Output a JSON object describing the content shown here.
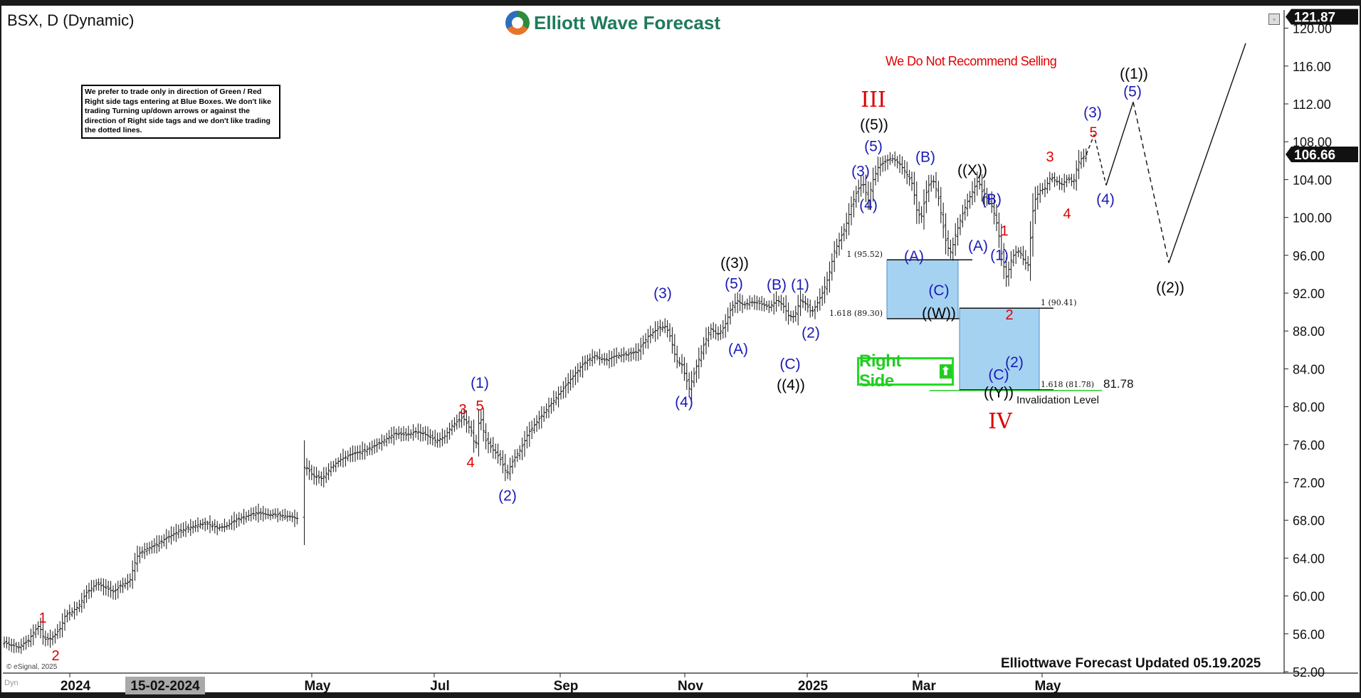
{
  "header": {
    "symbol_label": "BSX, D (Dynamic)",
    "logo_text": "Elliott Wave Forecast",
    "logo_icon": "ewf-logo-icon",
    "maximize_icon": "maximize-icon"
  },
  "notes": {
    "rules_box": "We prefer to trade only in direction of Green / Red Right side tags entering at Blue Boxes. We don't like trading Turning up/down arrows or against the direction of Right side tags and we don't like trading the dotted lines.",
    "no_selling": "We Do Not Recommend Selling",
    "right_side_label": "Right Side",
    "right_side_icon": "up-arrow-icon",
    "invalidation_label": "Invalidation Level",
    "footer_title": "Elliottwave Forecast Updated 05.19.2025",
    "copyright": "© eSignal, 2025",
    "dyn_tag": "Dyn"
  },
  "colors": {
    "wave_blue": "#1a1ab8",
    "wave_red": "#dd0000",
    "wave_black": "#000000",
    "box_fill": "#a6d2f2",
    "right_side_green": "#22cc22",
    "price_tag_bg": "#111111"
  },
  "chart_data": {
    "type": "bar",
    "subtype": "ohlc-daily",
    "ylim": [
      52,
      122
    ],
    "y_ticks": [
      "52.00",
      "56.00",
      "60.00",
      "64.00",
      "68.00",
      "72.00",
      "76.00",
      "80.00",
      "84.00",
      "88.00",
      "92.00",
      "96.00",
      "100.00",
      "104.00",
      "108.00",
      "112.00",
      "116.00",
      "120.00"
    ],
    "x_ticks": [
      "2024",
      "May",
      "Jul",
      "Sep",
      "Nov",
      "2025",
      "Mar",
      "May"
    ],
    "x_selected_label": "15-02-2024",
    "last_price": "106.66",
    "top_price": "121.87",
    "grid": false,
    "price_path": [
      [
        0,
        55.2
      ],
      [
        12,
        54.9
      ],
      [
        26,
        54.6
      ],
      [
        40,
        55.3
      ],
      [
        48,
        56.3
      ],
      [
        55,
        56.9
      ],
      [
        62,
        55.4
      ],
      [
        72,
        55.5
      ],
      [
        84,
        56.5
      ],
      [
        92,
        58.0
      ],
      [
        100,
        58.3
      ],
      [
        110,
        58.9
      ],
      [
        122,
        60.4
      ],
      [
        136,
        61.3
      ],
      [
        150,
        60.8
      ],
      [
        160,
        60.4
      ],
      [
        170,
        61.2
      ],
      [
        182,
        61.5
      ],
      [
        188,
        63.2
      ],
      [
        194,
        64.4
      ],
      [
        205,
        65.0
      ],
      [
        220,
        65.4
      ],
      [
        235,
        66.2
      ],
      [
        250,
        66.8
      ],
      [
        265,
        67.2
      ],
      [
        280,
        67.6
      ],
      [
        292,
        67.6
      ],
      [
        305,
        67.2
      ],
      [
        318,
        67.4
      ],
      [
        330,
        68.0
      ],
      [
        345,
        68.4
      ],
      [
        360,
        68.8
      ],
      [
        375,
        68.6
      ],
      [
        390,
        68.6
      ],
      [
        405,
        68.4
      ],
      [
        418,
        68.2
      ],
      [
        428,
        73.8
      ],
      [
        440,
        72.7
      ],
      [
        452,
        72.4
      ],
      [
        465,
        73.6
      ],
      [
        480,
        74.5
      ],
      [
        495,
        75.0
      ],
      [
        510,
        75.3
      ],
      [
        525,
        75.8
      ],
      [
        540,
        76.5
      ],
      [
        555,
        77.2
      ],
      [
        570,
        77.0
      ],
      [
        585,
        77.4
      ],
      [
        600,
        77.0
      ],
      [
        612,
        76.4
      ],
      [
        624,
        76.8
      ],
      [
        635,
        78.0
      ],
      [
        650,
        78.9
      ],
      [
        662,
        77.5
      ],
      [
        668,
        75.6
      ],
      [
        674,
        79.2
      ],
      [
        682,
        76.5
      ],
      [
        692,
        75.5
      ],
      [
        702,
        74.6
      ],
      [
        712,
        72.9
      ],
      [
        722,
        74.5
      ],
      [
        732,
        75.6
      ],
      [
        742,
        77.2
      ],
      [
        758,
        78.8
      ],
      [
        775,
        80.4
      ],
      [
        790,
        81.8
      ],
      [
        805,
        83.2
      ],
      [
        820,
        84.6
      ],
      [
        835,
        85.4
      ],
      [
        850,
        84.9
      ],
      [
        865,
        85.4
      ],
      [
        880,
        85.5
      ],
      [
        895,
        85.8
      ],
      [
        910,
        87.4
      ],
      [
        925,
        88.3
      ],
      [
        935,
        88.5
      ],
      [
        942,
        87.3
      ],
      [
        950,
        84.9
      ],
      [
        958,
        84.4
      ],
      [
        968,
        81.9
      ],
      [
        976,
        83.7
      ],
      [
        988,
        86.4
      ],
      [
        998,
        88.3
      ],
      [
        1008,
        87.6
      ],
      [
        1018,
        88.5
      ],
      [
        1028,
        90.6
      ],
      [
        1036,
        91.2
      ],
      [
        1045,
        90.7
      ],
      [
        1055,
        91.1
      ],
      [
        1068,
        90.9
      ],
      [
        1080,
        90.5
      ],
      [
        1092,
        91.3
      ],
      [
        1100,
        90.7
      ],
      [
        1108,
        89.6
      ],
      [
        1116,
        89.5
      ],
      [
        1124,
        91.3
      ],
      [
        1132,
        90.9
      ],
      [
        1140,
        89.9
      ],
      [
        1148,
        90.9
      ],
      [
        1156,
        92.1
      ],
      [
        1164,
        93.8
      ],
      [
        1172,
        96.4
      ],
      [
        1180,
        97.7
      ],
      [
        1188,
        99.1
      ],
      [
        1196,
        101.2
      ],
      [
        1204,
        102.8
      ],
      [
        1212,
        103.7
      ],
      [
        1220,
        101.8
      ],
      [
        1226,
        103.9
      ],
      [
        1234,
        105.4
      ],
      [
        1242,
        105.8
      ],
      [
        1252,
        106.3
      ],
      [
        1262,
        105.8
      ],
      [
        1272,
        104.8
      ],
      [
        1282,
        103.5
      ],
      [
        1288,
        100.7
      ],
      [
        1294,
        99.9
      ],
      [
        1300,
        102.3
      ],
      [
        1306,
        103.7
      ],
      [
        1312,
        103.8
      ],
      [
        1318,
        102.2
      ],
      [
        1324,
        99.5
      ],
      [
        1330,
        97.0
      ],
      [
        1336,
        96.3
      ],
      [
        1342,
        98.1
      ],
      [
        1350,
        99.9
      ],
      [
        1358,
        101.5
      ],
      [
        1366,
        102.7
      ],
      [
        1374,
        104.0
      ],
      [
        1382,
        102.2
      ],
      [
        1390,
        101.9
      ],
      [
        1396,
        100.6
      ],
      [
        1402,
        98.8
      ],
      [
        1408,
        95.5
      ],
      [
        1414,
        93.6
      ],
      [
        1420,
        95.4
      ],
      [
        1426,
        96.3
      ],
      [
        1432,
        96.5
      ],
      [
        1438,
        95.5
      ],
      [
        1444,
        94.8
      ],
      [
        1452,
        101.5
      ],
      [
        1460,
        102.8
      ],
      [
        1468,
        103.1
      ],
      [
        1476,
        104.3
      ],
      [
        1484,
        103.8
      ],
      [
        1492,
        103.5
      ],
      [
        1500,
        104.1
      ],
      [
        1508,
        103.7
      ],
      [
        1514,
        105.7
      ],
      [
        1520,
        106.3
      ],
      [
        1526,
        106.66
      ]
    ],
    "projection": [
      {
        "points": [
          [
            1526,
            106.66
          ],
          [
            1537,
            108.7
          ],
          [
            1554,
            103.4
          ]
        ],
        "style": "dotted"
      },
      {
        "points": [
          [
            1554,
            103.4
          ],
          [
            1592,
            112.2
          ]
        ],
        "style": "solid"
      },
      {
        "points": [
          [
            1592,
            112.2
          ],
          [
            1642,
            95.2
          ]
        ],
        "style": "dashed"
      },
      {
        "points": [
          [
            1642,
            95.2
          ],
          [
            1750,
            118.4
          ]
        ],
        "style": "solid"
      }
    ],
    "blue_boxes": [
      {
        "x0": 1246,
        "x1": 1346,
        "y_top": 95.52,
        "y_bottom": 89.3,
        "label_top": "1 (95.52)",
        "label_bottom": "1.618 (89.30)"
      },
      {
        "x0": 1348,
        "x1": 1460,
        "y_top": 90.41,
        "y_bottom": 81.78,
        "label_top": "1 (90.41)",
        "label_bottom": "1.618 (81.78)"
      }
    ],
    "invalidation": {
      "value": 81.78,
      "value_label": "81.78"
    },
    "wave_labels": [
      {
        "text": "1",
        "x": 60,
        "y": 57.6,
        "color": "red"
      },
      {
        "text": "2",
        "x": 78,
        "y": 53.6,
        "color": "red"
      },
      {
        "text": "3",
        "x": 650,
        "y": 79.6,
        "color": "red"
      },
      {
        "text": "5",
        "x": 674,
        "y": 80.0,
        "color": "red"
      },
      {
        "text": "4",
        "x": 661,
        "y": 74.0,
        "color": "red"
      },
      {
        "text": "(1)",
        "x": 674,
        "y": 82.4,
        "color": "blue"
      },
      {
        "text": "(2)",
        "x": 713,
        "y": 70.5,
        "color": "blue"
      },
      {
        "text": "(3)",
        "x": 931,
        "y": 91.9,
        "color": "blue"
      },
      {
        "text": "(4)",
        "x": 961,
        "y": 80.4,
        "color": "blue"
      },
      {
        "text": "(5)",
        "x": 1031,
        "y": 92.9,
        "color": "blue"
      },
      {
        "text": "((3))",
        "x": 1032,
        "y": 95.1,
        "color": "black"
      },
      {
        "text": "(A)",
        "x": 1037,
        "y": 86.0,
        "color": "blue"
      },
      {
        "text": "(B)",
        "x": 1091,
        "y": 92.8,
        "color": "blue"
      },
      {
        "text": "(1)",
        "x": 1124,
        "y": 92.8,
        "color": "blue"
      },
      {
        "text": "(C)",
        "x": 1110,
        "y": 84.4,
        "color": "blue"
      },
      {
        "text": "((4))",
        "x": 1111,
        "y": 82.2,
        "color": "black"
      },
      {
        "text": "(2)",
        "x": 1139,
        "y": 87.7,
        "color": "blue"
      },
      {
        "text": "(3)",
        "x": 1209,
        "y": 104.8,
        "color": "blue"
      },
      {
        "text": "(4)",
        "x": 1220,
        "y": 101.2,
        "color": "blue"
      },
      {
        "text": "(5)",
        "x": 1227,
        "y": 107.4,
        "color": "blue"
      },
      {
        "text": "((5))",
        "x": 1228,
        "y": 109.7,
        "color": "black"
      },
      {
        "text": "III",
        "x": 1227,
        "y": 112.3,
        "color": "red"
      },
      {
        "text": "(B)",
        "x": 1300,
        "y": 106.3,
        "color": "blue"
      },
      {
        "text": "(A)",
        "x": 1284,
        "y": 95.8,
        "color": "blue"
      },
      {
        "text": "(C)",
        "x": 1319,
        "y": 92.2,
        "color": "blue"
      },
      {
        "text": "((W))",
        "x": 1319,
        "y": 89.8,
        "color": "black"
      },
      {
        "text": "((X))",
        "x": 1366,
        "y": 104.9,
        "color": "black"
      },
      {
        "text": "(B)",
        "x": 1393,
        "y": 101.8,
        "color": "blue"
      },
      {
        "text": "(A)",
        "x": 1374,
        "y": 96.9,
        "color": "blue"
      },
      {
        "text": "1",
        "x": 1411,
        "y": 98.5,
        "color": "red"
      },
      {
        "text": "(1)",
        "x": 1404,
        "y": 95.9,
        "color": "blue"
      },
      {
        "text": "2",
        "x": 1418,
        "y": 89.6,
        "color": "red"
      },
      {
        "text": "(2)",
        "x": 1425,
        "y": 84.6,
        "color": "blue"
      },
      {
        "text": "(C)",
        "x": 1403,
        "y": 83.3,
        "color": "blue"
      },
      {
        "text": "((Y))",
        "x": 1403,
        "y": 81.4,
        "color": "black"
      },
      {
        "text": "IV",
        "x": 1405,
        "y": 78.3,
        "color": "red"
      },
      {
        "text": "3",
        "x": 1475,
        "y": 106.3,
        "color": "red"
      },
      {
        "text": "4",
        "x": 1499,
        "y": 100.3,
        "color": "red"
      },
      {
        "text": "(3)",
        "x": 1535,
        "y": 111.0,
        "color": "blue"
      },
      {
        "text": "5",
        "x": 1536,
        "y": 108.9,
        "color": "red"
      },
      {
        "text": "(4)",
        "x": 1553,
        "y": 101.8,
        "color": "blue"
      },
      {
        "text": "((1))",
        "x": 1593,
        "y": 115.1,
        "color": "black"
      },
      {
        "text": "(5)",
        "x": 1591,
        "y": 113.2,
        "color": "blue"
      },
      {
        "text": "((2))",
        "x": 1644,
        "y": 92.5,
        "color": "black"
      }
    ]
  }
}
